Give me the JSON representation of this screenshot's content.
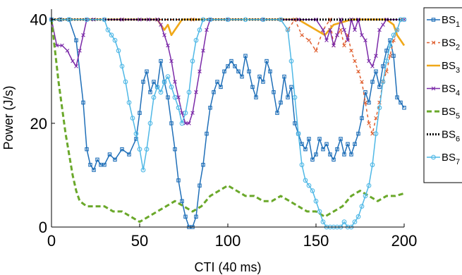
{
  "chart_data": {
    "type": "line",
    "xlabel": "CTI (40 ms)",
    "ylabel": "Power (J/s)",
    "xlim": [
      0,
      200
    ],
    "ylim": [
      0,
      42
    ],
    "xticks": [
      "0",
      "50",
      "100",
      "150",
      "200"
    ],
    "yticks": [
      "0",
      "20",
      "40"
    ],
    "grid": false,
    "legend_position": "right, outside plot",
    "series": [
      {
        "name": "BS1",
        "label_base": "BS",
        "label_sub": "1",
        "color": "#1f6fb8",
        "dash": "",
        "marker": "square",
        "x": [
          0,
          5,
          10,
          14,
          18,
          20,
          22,
          24,
          26,
          28,
          30,
          33,
          36,
          40,
          44,
          48,
          50,
          52,
          54,
          56,
          58,
          60,
          62,
          64,
          66,
          68,
          70,
          72,
          74,
          76,
          78,
          80,
          82,
          84,
          86,
          88,
          90,
          92,
          94,
          96,
          98,
          100,
          102,
          104,
          106,
          108,
          110,
          112,
          114,
          116,
          118,
          120,
          122,
          124,
          126,
          128,
          130,
          132,
          134,
          136,
          138,
          140,
          142,
          144,
          146,
          148,
          150,
          152,
          154,
          156,
          158,
          160,
          162,
          164,
          166,
          168,
          170,
          172,
          174,
          176,
          178,
          180,
          182,
          184,
          186,
          188,
          190,
          192,
          194,
          196,
          198,
          200
        ],
        "y": [
          40,
          40,
          40,
          36,
          24,
          15,
          12,
          11,
          13,
          12,
          12,
          14,
          13,
          15,
          14,
          17,
          22,
          28,
          30,
          26,
          28,
          27,
          32,
          28,
          25,
          20,
          15,
          9,
          5,
          2,
          0,
          0,
          2,
          8,
          12,
          18,
          23,
          26,
          28,
          27,
          30,
          31,
          32,
          31,
          30,
          29,
          33,
          30,
          27,
          25,
          29,
          28,
          32,
          30,
          26,
          22,
          24,
          29,
          25,
          27,
          20,
          18,
          16,
          15,
          17,
          13,
          14,
          17,
          15,
          16,
          14,
          13,
          15,
          17,
          14,
          16,
          14,
          16,
          18,
          21,
          26,
          24,
          28,
          30,
          27,
          31,
          34,
          36,
          33,
          25,
          24,
          23
        ]
      },
      {
        "name": "BS2",
        "label_base": "BS",
        "label_sub": "2",
        "color": "#e06030",
        "dash": "4,4",
        "marker": "x",
        "x": [
          0,
          20,
          40,
          60,
          80,
          100,
          120,
          130,
          134,
          138,
          142,
          146,
          150,
          154,
          158,
          160,
          162,
          164,
          166,
          168,
          170,
          172,
          174,
          176,
          178,
          180,
          182,
          184,
          186,
          188,
          190,
          192,
          194,
          196,
          198,
          200
        ],
        "y": [
          40,
          40,
          40,
          40,
          40,
          40,
          40,
          40,
          38,
          40,
          37,
          36,
          34,
          38,
          40,
          35,
          37,
          38,
          35,
          37,
          34,
          32,
          30,
          28,
          24,
          20,
          18,
          21,
          24,
          28,
          30,
          33,
          36,
          38,
          40,
          40
        ]
      },
      {
        "name": "BS3",
        "label_base": "BS",
        "label_sub": "3",
        "color": "#f0a818",
        "dash": "",
        "marker": "none",
        "x": [
          0,
          20,
          40,
          60,
          62,
          64,
          66,
          68,
          70,
          72,
          74,
          76,
          80,
          100,
          120,
          140,
          150,
          155,
          160,
          170,
          180,
          190,
          194,
          196,
          198,
          200
        ],
        "y": [
          40,
          40,
          40,
          40,
          39,
          38,
          39,
          37,
          38,
          39,
          40,
          40,
          40,
          40,
          40,
          40,
          38,
          37,
          39,
          40,
          40,
          40,
          39,
          37,
          36,
          35
        ]
      },
      {
        "name": "BS4",
        "label_base": "BS",
        "label_sub": "4",
        "color": "#7b2aa8",
        "dash": "",
        "marker": "x",
        "x": [
          0,
          3,
          6,
          9,
          12,
          14,
          16,
          18,
          20,
          24,
          30,
          40,
          50,
          55,
          60,
          62,
          64,
          66,
          68,
          70,
          72,
          74,
          76,
          78,
          80,
          82,
          84,
          86,
          88,
          90,
          100,
          120,
          140,
          150,
          154,
          156,
          158,
          160,
          162,
          164,
          166,
          168,
          170,
          172,
          174,
          176,
          178,
          180,
          182,
          184,
          186,
          188,
          190,
          200
        ],
        "y": [
          40,
          35,
          35,
          34,
          32,
          31,
          34,
          37,
          40,
          40,
          40,
          40,
          40,
          40,
          40,
          39,
          37,
          35,
          32,
          28,
          25,
          22,
          20,
          20,
          22,
          26,
          30,
          34,
          38,
          40,
          40,
          40,
          40,
          40,
          38,
          36,
          38,
          35,
          37,
          40,
          38,
          36,
          40,
          38,
          40,
          37,
          36,
          32,
          31,
          33,
          38,
          39,
          40,
          40
        ]
      },
      {
        "name": "BS5",
        "label_base": "BS",
        "label_sub": "5",
        "color": "#6aa82a",
        "dash": "7,4",
        "marker": "none",
        "x": [
          0,
          2,
          4,
          6,
          8,
          10,
          12,
          14,
          16,
          18,
          20,
          25,
          30,
          35,
          40,
          45,
          50,
          55,
          60,
          65,
          70,
          75,
          80,
          85,
          90,
          95,
          100,
          105,
          110,
          115,
          120,
          125,
          130,
          135,
          140,
          145,
          150,
          155,
          160,
          165,
          170,
          175,
          180,
          185,
          190,
          195,
          200
        ],
        "y": [
          40,
          34,
          28,
          23,
          18,
          14,
          10,
          7,
          5,
          4.5,
          4,
          4,
          4,
          3,
          3,
          2,
          1,
          2,
          3,
          4,
          5,
          4,
          3,
          4,
          6,
          7,
          8,
          7,
          6,
          6,
          5,
          5,
          6,
          5,
          4,
          3,
          3,
          2,
          3,
          4,
          6,
          7,
          6,
          5,
          6,
          6,
          6.5
        ]
      },
      {
        "name": "BS6",
        "label_base": "BS",
        "label_sub": "6",
        "color": "#000000",
        "dash": "2,2",
        "marker": "none",
        "x": [
          0,
          40,
          80,
          120,
          160,
          200
        ],
        "y": [
          40,
          40,
          40,
          40,
          40,
          40
        ]
      },
      {
        "name": "BS7",
        "label_base": "BS",
        "label_sub": "7",
        "color": "#4fb8e6",
        "dash": "",
        "marker": "circle",
        "x": [
          0,
          10,
          20,
          30,
          32,
          34,
          36,
          38,
          40,
          42,
          44,
          46,
          48,
          50,
          52,
          54,
          56,
          58,
          60,
          62,
          64,
          66,
          68,
          70,
          72,
          74,
          76,
          78,
          80,
          82,
          84,
          86,
          90,
          100,
          110,
          120,
          130,
          134,
          136,
          138,
          140,
          142,
          144,
          146,
          148,
          150,
          152,
          154,
          156,
          158,
          160,
          162,
          164,
          166,
          168,
          170,
          172,
          174,
          176,
          178,
          180,
          182,
          184,
          186,
          188,
          190,
          192,
          194,
          196,
          198,
          200
        ],
        "y": [
          40,
          40,
          40,
          40,
          38,
          37,
          36,
          34,
          31,
          28,
          24,
          21,
          18,
          15,
          11,
          15,
          20,
          25,
          27,
          26,
          28,
          29,
          27,
          25,
          23,
          20,
          22,
          26,
          32,
          36,
          38,
          40,
          40,
          40,
          40,
          40,
          40,
          38,
          32,
          25,
          18,
          12,
          9,
          8,
          7,
          5,
          3,
          1,
          0,
          0,
          0,
          0,
          0,
          1,
          0,
          0,
          1,
          2,
          4,
          6,
          8,
          12,
          18,
          23,
          28,
          32,
          35,
          37,
          38,
          40,
          40
        ]
      }
    ]
  }
}
